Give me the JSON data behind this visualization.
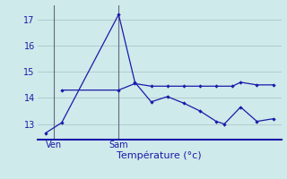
{
  "bg_color": "#ceeaea",
  "grid_color": "#b0cccc",
  "line_color": "#1a1aaa",
  "axis_color": "#1a1aaa",
  "xlabel": "Température (°c)",
  "ylim": [
    12.4,
    17.55
  ],
  "yticks": [
    13,
    14,
    15,
    16,
    17
  ],
  "xlim": [
    -0.5,
    14.5
  ],
  "ven_x": 0.5,
  "sam_x": 4.5,
  "series1_x": [
    0.0,
    1.0,
    4.5,
    5.5,
    6.5,
    7.5,
    8.5,
    9.5,
    10.5,
    11.0,
    12.0,
    13.0,
    14.0
  ],
  "series1_y": [
    12.65,
    13.05,
    17.2,
    14.6,
    13.85,
    14.05,
    13.8,
    13.5,
    13.1,
    13.0,
    13.65,
    13.1,
    13.2
  ],
  "series3_x": [
    1.0,
    4.5,
    5.5,
    6.5,
    7.5,
    8.5,
    9.5,
    10.5,
    11.5,
    12.0,
    13.0,
    14.0
  ],
  "series3_y": [
    14.3,
    14.3,
    14.55,
    14.45,
    14.45,
    14.45,
    14.45,
    14.45,
    14.45,
    14.6,
    14.5,
    14.5
  ],
  "ven_label": "Ven",
  "sam_label": "Sam",
  "label_fontsize": 7,
  "xlabel_fontsize": 8
}
